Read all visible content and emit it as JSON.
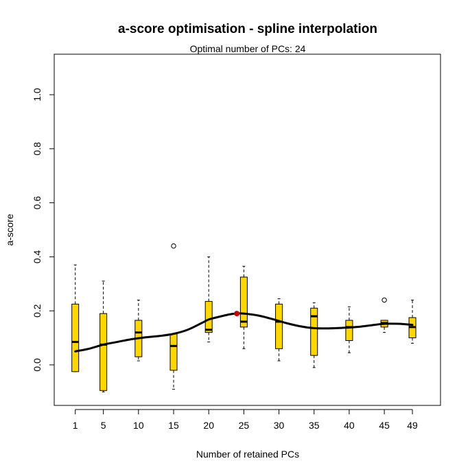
{
  "chart_data": {
    "type": "boxplot",
    "title": "a-score optimisation - spline interpolation",
    "subtitle": "Optimal number of PCs: 24",
    "xlabel": "Number of retained PCs",
    "ylabel": "a-score",
    "ylim": [
      -0.15,
      1.15
    ],
    "xlim": [
      -2,
      53
    ],
    "yticks": [
      "0.0",
      "0.2",
      "0.4",
      "0.6",
      "0.8",
      "1.0"
    ],
    "xticks": [
      "1",
      "5",
      "10",
      "15",
      "20",
      "25",
      "30",
      "35",
      "40",
      "45",
      "49"
    ],
    "box_color": "#FFD700",
    "optimum": {
      "x": 24,
      "y": 0.19,
      "color": "#CC0000"
    },
    "boxes": [
      {
        "x": 1,
        "min": -0.025,
        "q1": -0.025,
        "median": 0.085,
        "q3": 0.225,
        "max": 0.37,
        "outliers": []
      },
      {
        "x": 5,
        "min": -0.1,
        "q1": -0.095,
        "median": 0.075,
        "q3": 0.19,
        "max": 0.31,
        "outliers": []
      },
      {
        "x": 10,
        "min": 0.015,
        "q1": 0.03,
        "median": 0.12,
        "q3": 0.165,
        "max": 0.24,
        "outliers": []
      },
      {
        "x": 15,
        "min": -0.09,
        "q1": -0.02,
        "median": 0.07,
        "q3": 0.115,
        "max": 0.115,
        "outliers": [
          0.44
        ]
      },
      {
        "x": 20,
        "min": 0.085,
        "q1": 0.12,
        "median": 0.13,
        "q3": 0.235,
        "max": 0.4,
        "outliers": []
      },
      {
        "x": 25,
        "min": 0.06,
        "q1": 0.14,
        "median": 0.16,
        "q3": 0.325,
        "max": 0.365,
        "outliers": []
      },
      {
        "x": 30,
        "min": 0.015,
        "q1": 0.06,
        "median": 0.16,
        "q3": 0.225,
        "max": 0.245,
        "outliers": []
      },
      {
        "x": 35,
        "min": -0.01,
        "q1": 0.035,
        "median": 0.18,
        "q3": 0.21,
        "max": 0.23,
        "outliers": []
      },
      {
        "x": 40,
        "min": 0.045,
        "q1": 0.09,
        "median": 0.14,
        "q3": 0.165,
        "max": 0.215,
        "outliers": []
      },
      {
        "x": 45,
        "min": 0.12,
        "q1": 0.14,
        "median": 0.155,
        "q3": 0.165,
        "max": 0.165,
        "outliers": [
          0.24
        ]
      },
      {
        "x": 49,
        "min": 0.08,
        "q1": 0.1,
        "median": 0.14,
        "q3": 0.175,
        "max": 0.24,
        "outliers": []
      }
    ],
    "spline": {
      "x": [
        1,
        3,
        5,
        7,
        9,
        11,
        13,
        15,
        17,
        19,
        20,
        21,
        23,
        24,
        25,
        27,
        29,
        31,
        33,
        35,
        37,
        39,
        41,
        43,
        45,
        47,
        49
      ],
      "y": [
        0.05,
        0.06,
        0.075,
        0.085,
        0.095,
        0.102,
        0.107,
        0.115,
        0.13,
        0.155,
        0.168,
        0.175,
        0.187,
        0.19,
        0.19,
        0.183,
        0.17,
        0.155,
        0.143,
        0.136,
        0.135,
        0.137,
        0.14,
        0.146,
        0.152,
        0.152,
        0.148
      ]
    }
  }
}
